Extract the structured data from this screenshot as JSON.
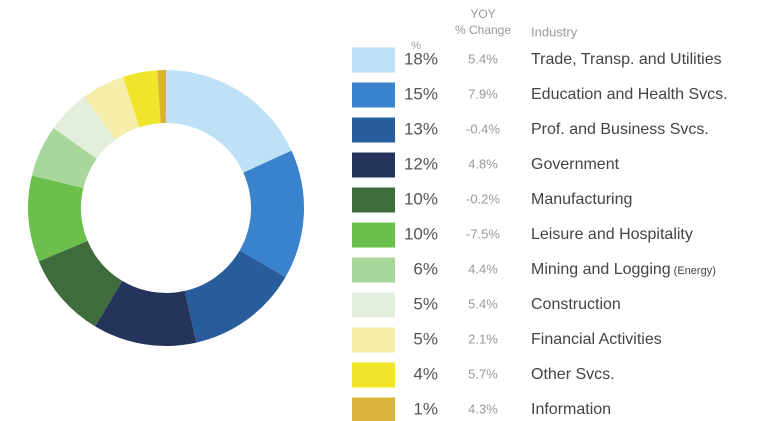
{
  "chart_data": {
    "type": "donut",
    "headers": {
      "percent": "%",
      "yoy": [
        "YOY",
        "% Change"
      ],
      "industry": "Industry"
    },
    "categories": [
      "Trade, Transp. and Utilities",
      "Education and Health Svcs.",
      "Prof. and Business Svcs.",
      "Government",
      "Manufacturing",
      "Leisure and Hospitality",
      "Mining and Logging",
      "Construction",
      "Financial Activities",
      "Other Svcs.",
      "Information"
    ],
    "annotations": [
      "(Energy)"
    ],
    "values": [
      18,
      15,
      13,
      12,
      10,
      10,
      6,
      5,
      5,
      4,
      1
    ],
    "value_labels": [
      "18%",
      "15%",
      "13%",
      "12%",
      "10%",
      "10%",
      "6%",
      "5%",
      "5%",
      "4%",
      "1%"
    ],
    "yoy_change": [
      "5.4%",
      "7.9%",
      "-0.4%",
      "4.8%",
      "-0.2%",
      "-7.5%",
      "4.4%",
      "5.4%",
      "2.1%",
      "5.7%",
      "4.3%"
    ],
    "colors": [
      "#bfe1f6",
      "#3a82cc",
      "#295c9c",
      "#25345a",
      "#3f6c3d",
      "#6cbf4d",
      "#a9d79b",
      "#e3efdc",
      "#f4eeaa",
      "#f1e52c",
      "#d9b43a"
    ]
  }
}
